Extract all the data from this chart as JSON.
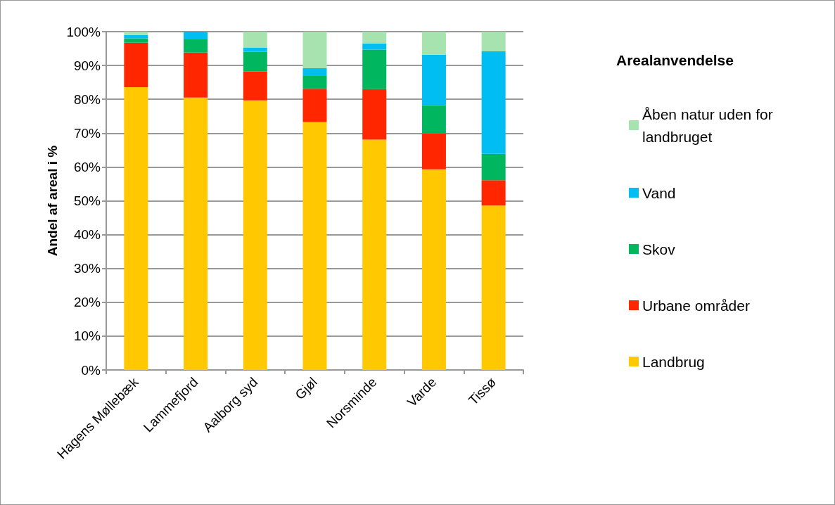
{
  "chart_data": {
    "type": "bar",
    "stacked": true,
    "ylabel": "Andel af areal i %",
    "legend_title": "Arealanvendelse",
    "legend": "right",
    "grid": "y",
    "categories": [
      "Hagens Møllebæk",
      "Lammefjord",
      "Aalborg syd",
      "Gjøl",
      "Norsminde",
      "Varde",
      "Tissø"
    ],
    "ylim": [
      0,
      100
    ],
    "yticks": [
      {
        "value": 0,
        "label": "0%"
      },
      {
        "value": 10,
        "label": "10%"
      },
      {
        "value": 20,
        "label": "20%"
      },
      {
        "value": 30,
        "label": "30%"
      },
      {
        "value": 40,
        "label": "40%"
      },
      {
        "value": 50,
        "label": "50%"
      },
      {
        "value": 60,
        "label": "60%"
      },
      {
        "value": 70,
        "label": "70%"
      },
      {
        "value": 80,
        "label": "80%"
      },
      {
        "value": 90,
        "label": "90%"
      },
      {
        "value": 100,
        "label": "100%"
      }
    ],
    "series": [
      {
        "name": "Landbrug",
        "color": "#ffc800",
        "values": [
          83.6,
          80.5,
          79.7,
          73.3,
          68.1,
          59.3,
          48.6
        ]
      },
      {
        "name": "Urbane områder",
        "color": "#ff2600",
        "values": [
          13.1,
          13.3,
          8.5,
          9.8,
          14.9,
          10.6,
          7.5
        ]
      },
      {
        "name": "Skov",
        "color": "#00b75f",
        "values": [
          1.3,
          3.9,
          5.9,
          3.8,
          11.7,
          8.3,
          7.8
        ]
      },
      {
        "name": "Vand",
        "color": "#00bef2",
        "values": [
          1.0,
          2.3,
          1.2,
          2.3,
          1.8,
          15.0,
          30.3
        ]
      },
      {
        "name": "Åben natur uden for landbruget",
        "color": "#a6e3ae",
        "values": [
          1.0,
          0,
          4.7,
          10.8,
          3.5,
          6.8,
          5.8
        ]
      }
    ]
  }
}
